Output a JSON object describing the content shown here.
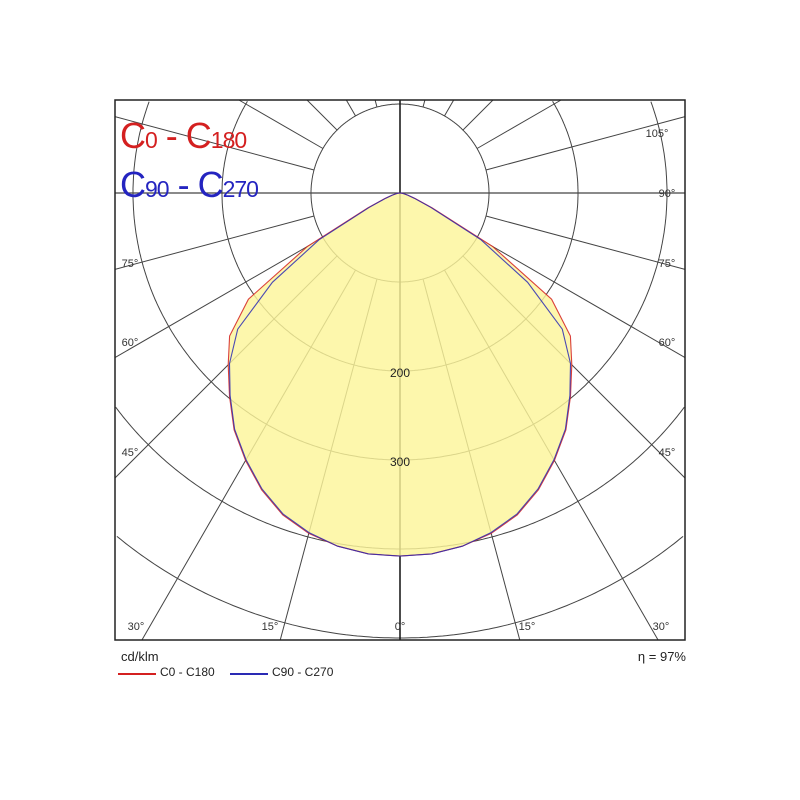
{
  "chart_data": {
    "type": "polar",
    "unit_label": "cd/klm",
    "efficiency_label": "η = 97%",
    "title_lines": [
      {
        "c1": "C",
        "n1": "0",
        "sep": " - ",
        "c2": "C",
        "n2": "180"
      },
      {
        "c1": "C",
        "n1": "90",
        "sep": " - ",
        "c2": "C",
        "n2": "270"
      }
    ],
    "rings": [
      100,
      200,
      300,
      400,
      500
    ],
    "ring_labels": [
      "200",
      "300"
    ],
    "angle_labels_right": [
      "105°",
      "90°",
      "75°",
      "60°",
      "45°",
      "30°",
      "15°",
      "0°"
    ],
    "angle_labels_left": [
      "75°",
      "60°",
      "45°",
      "30°",
      "15°"
    ],
    "angles": [
      0,
      5,
      10,
      15,
      20,
      25,
      30,
      35,
      40,
      45,
      50,
      55,
      60,
      65,
      70,
      75,
      80,
      85,
      90
    ],
    "series": [
      {
        "name": "C0 - C180",
        "color": "#d42020",
        "values": [
          408,
          407,
          403,
          396,
          385,
          368,
          347,
          325,
          298,
          273,
          250,
          208,
          120,
          40,
          18,
          9,
          4,
          2,
          0
        ]
      },
      {
        "name": "C90 - C270",
        "color": "#2a2ab4",
        "values": [
          408,
          407,
          403,
          395,
          384,
          367,
          346,
          324,
          297,
          271,
          238,
          175,
          105,
          38,
          17,
          9,
          4,
          2,
          0
        ]
      }
    ],
    "fill_color": "#fdf59a",
    "grid": true
  }
}
